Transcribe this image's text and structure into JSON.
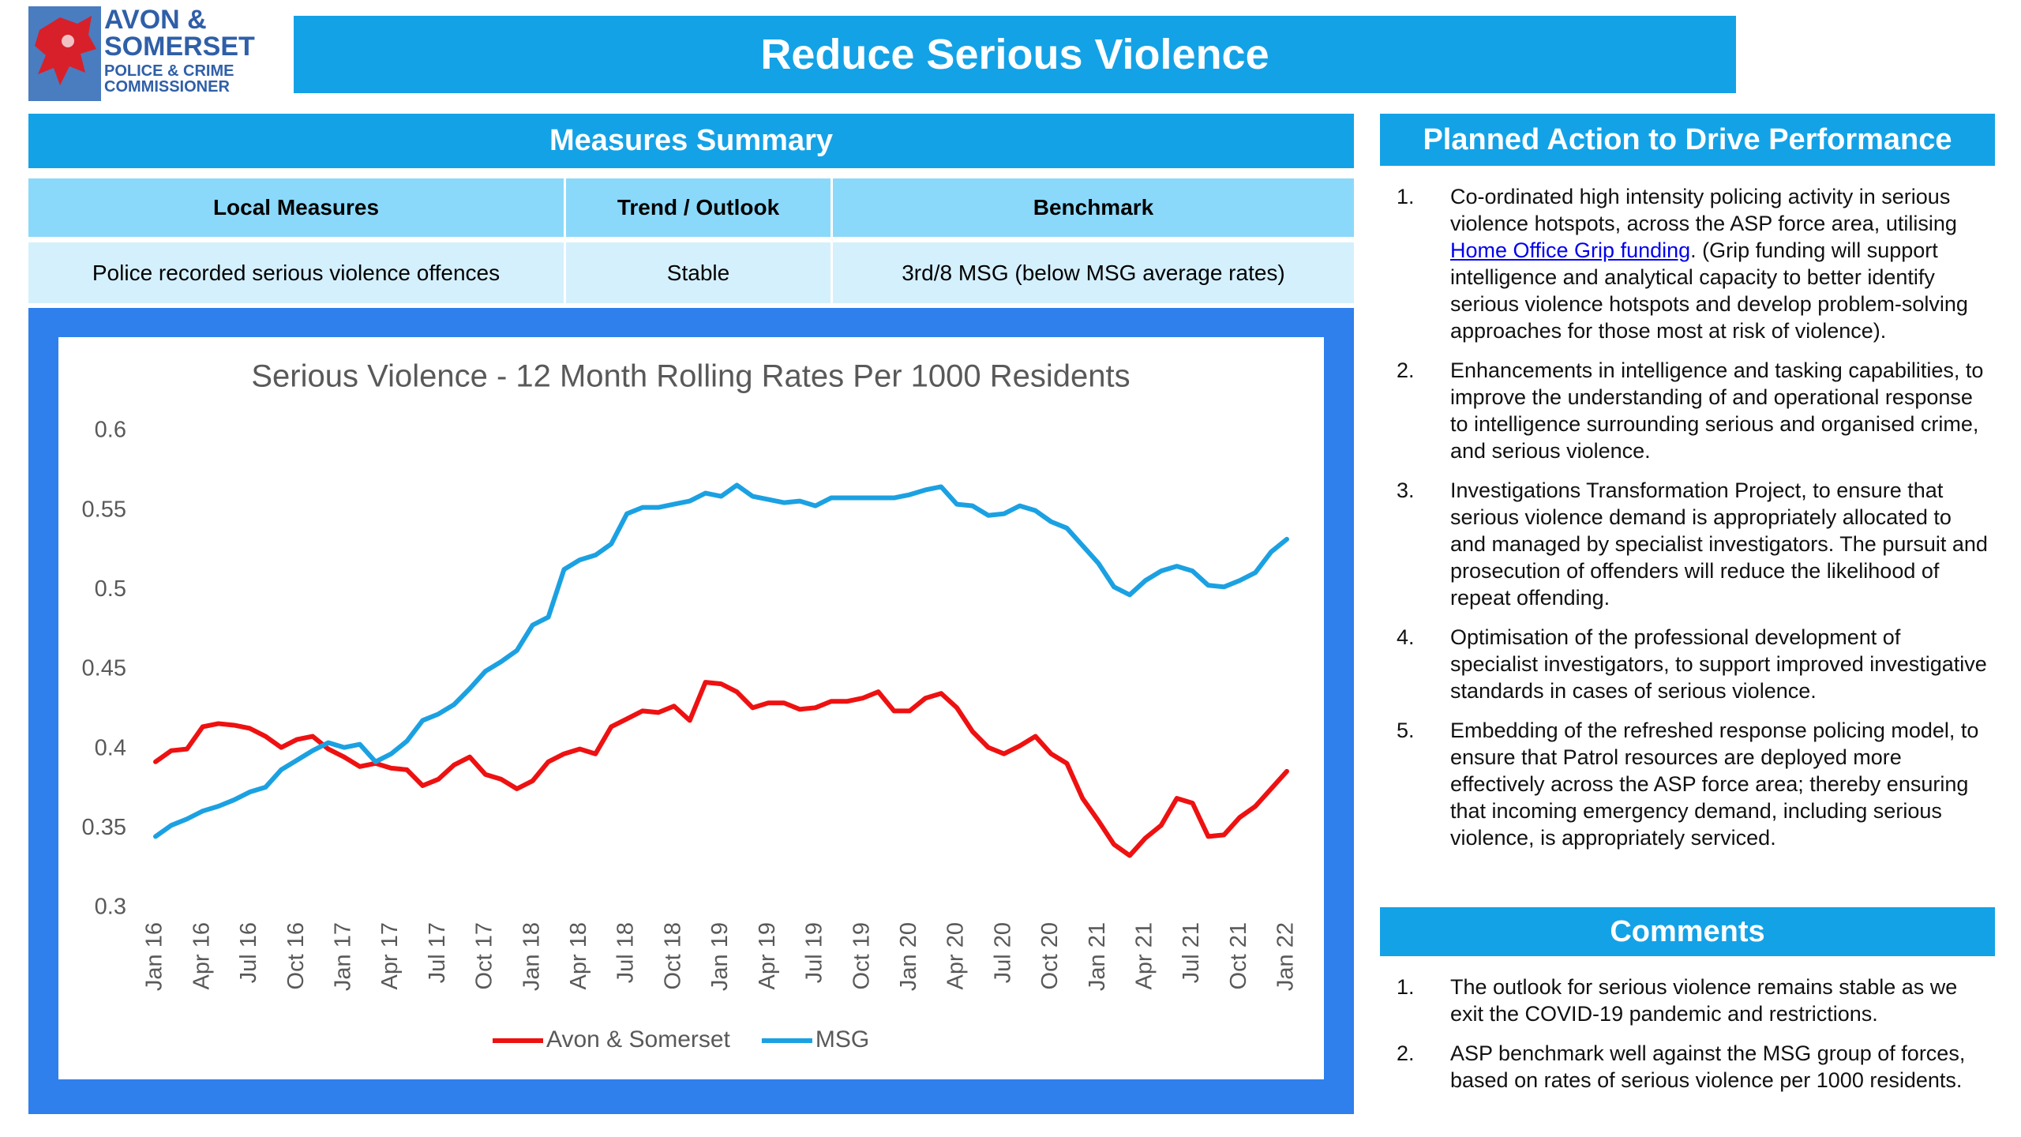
{
  "logo": {
    "lines": [
      "AVON &",
      "SOMERSET",
      "POLICE & CRIME",
      "COMMISSIONER"
    ]
  },
  "header": {
    "title": "Reduce Serious Violence"
  },
  "summary": {
    "title": "Measures Summary",
    "table": {
      "columns": [
        "Local Measures",
        "Trend / Outlook",
        "Benchmark"
      ],
      "rows": [
        [
          "Police recorded serious violence offences",
          "Stable",
          "3rd/8 MSG (below MSG average rates)"
        ]
      ]
    }
  },
  "chart_data": {
    "type": "line",
    "title": "Serious Violence - 12 Month Rolling Rates Per 1000 Residents",
    "categories": [
      "Jan 16",
      null,
      null,
      "Apr 16",
      null,
      null,
      "Jul 16",
      null,
      null,
      "Oct 16",
      null,
      null,
      "Jan 17",
      null,
      null,
      "Apr 17",
      null,
      null,
      "Jul 17",
      null,
      null,
      "Oct 17",
      null,
      null,
      "Jan 18",
      null,
      null,
      "Apr 18",
      null,
      null,
      "Jul 18",
      null,
      null,
      "Oct 18",
      null,
      null,
      "Jan 19",
      null,
      null,
      "Apr 19",
      null,
      null,
      "Jul 19",
      null,
      null,
      "Oct 19",
      null,
      null,
      "Jan 20",
      null,
      null,
      "Apr 20",
      null,
      null,
      "Jul 20",
      null,
      null,
      "Oct 20",
      null,
      null,
      "Jan 21",
      null,
      null,
      "Apr 21",
      null,
      null,
      "Jul 21",
      null,
      null,
      "Oct 21",
      null,
      null,
      "Jan 22"
    ],
    "series": [
      {
        "name": "Avon & Somerset",
        "color": "#ee1111",
        "values": [
          0.392,
          0.399,
          0.4,
          0.414,
          0.416,
          0.415,
          0.413,
          0.408,
          0.401,
          0.406,
          0.408,
          0.4,
          0.395,
          0.389,
          0.391,
          0.388,
          0.387,
          0.377,
          0.381,
          0.39,
          0.395,
          0.384,
          0.381,
          0.375,
          0.38,
          0.392,
          0.397,
          0.4,
          0.397,
          0.414,
          0.419,
          0.424,
          0.423,
          0.427,
          0.418,
          0.442,
          0.441,
          0.436,
          0.426,
          0.429,
          0.429,
          0.425,
          0.426,
          0.43,
          0.43,
          0.432,
          0.436,
          0.424,
          0.424,
          0.432,
          0.435,
          0.426,
          0.411,
          0.401,
          0.397,
          0.402,
          0.408,
          0.397,
          0.391,
          0.369,
          0.355,
          0.34,
          0.333,
          0.344,
          0.352,
          0.369,
          0.366,
          0.345,
          0.346,
          0.357,
          0.364,
          0.375,
          0.386
        ]
      },
      {
        "name": "MSG",
        "color": "#1ba1e2",
        "values": [
          0.345,
          0.352,
          0.356,
          0.361,
          0.364,
          0.368,
          0.373,
          0.376,
          0.387,
          0.393,
          0.399,
          0.404,
          0.401,
          0.403,
          0.392,
          0.397,
          0.405,
          0.418,
          0.422,
          0.428,
          0.438,
          0.449,
          0.455,
          0.462,
          0.478,
          0.483,
          0.513,
          0.519,
          0.522,
          0.529,
          0.548,
          0.552,
          0.552,
          0.554,
          0.556,
          0.561,
          0.559,
          0.566,
          0.559,
          0.557,
          0.555,
          0.556,
          0.553,
          0.558,
          0.558,
          0.558,
          0.558,
          0.558,
          0.56,
          0.563,
          0.565,
          0.554,
          0.553,
          0.547,
          0.548,
          0.553,
          0.55,
          0.543,
          0.539,
          0.528,
          0.517,
          0.502,
          0.497,
          0.506,
          0.512,
          0.515,
          0.512,
          0.503,
          0.502,
          0.506,
          0.511,
          0.524,
          0.532
        ]
      }
    ],
    "ylim": [
      0.3,
      0.6
    ],
    "yticks": [
      0.3,
      0.35,
      0.4,
      0.45,
      0.5,
      0.55,
      0.6
    ],
    "grid": false,
    "legend": "bottom"
  },
  "actions": {
    "title": "Planned Action to Drive Performance",
    "items": [
      {
        "number": "1.",
        "text": "Co-ordinated high intensity policing activity in serious violence hotspots, across the ASP force area, utilising ",
        "link": "Home Office Grip funding",
        "text_end": ". (Grip funding will support intelligence and analytical capacity to better identify serious violence hotspots and develop problem-solving approaches for those most at risk of violence)."
      },
      {
        "number": "2.",
        "text": "Enhancements in intelligence and tasking capabilities, to improve the understanding of and operational response to intelligence surrounding serious and organised crime, and serious violence."
      },
      {
        "number": "3.",
        "text": "Investigations Transformation Project, to ensure that serious violence demand is appropriately allocated to and managed by specialist investigators. The pursuit and prosecution of offenders will reduce the likelihood of repeat offending."
      },
      {
        "number": "4.",
        "text": "Optimisation of the professional development of specialist investigators, to support improved investigative standards in cases of serious violence."
      },
      {
        "number": "5.",
        "text": "Embedding of the refreshed response policing model, to ensure that Patrol resources are deployed more effectively across the ASP force area; thereby ensuring that incoming emergency demand, including serious violence, is appropriately serviced."
      }
    ]
  },
  "comments": {
    "title": "Comments",
    "items": [
      {
        "number": "1.",
        "text": "The outlook for serious violence remains stable as we exit the COVID-19 pandemic and restrictions."
      },
      {
        "number": "2.",
        "text": "ASP benchmark well against the MSG group of forces, based on rates of serious violence per 1000 residents."
      }
    ]
  }
}
